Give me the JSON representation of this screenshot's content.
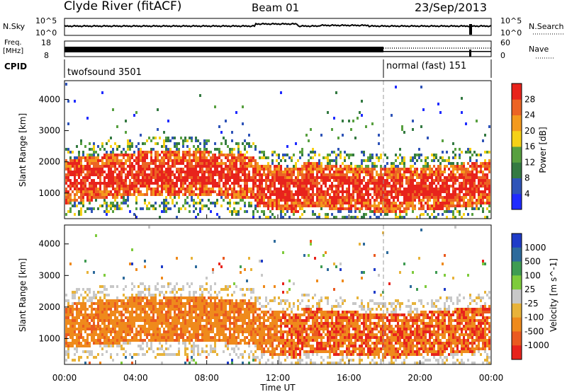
{
  "header": {
    "station": "Clyde River (fitACF)",
    "beam": "Beam 01",
    "date": "23/Sep/2013"
  },
  "sky_panel": {
    "left_label": "N.Sky",
    "left_ticks": [
      "10^5",
      "10^0"
    ],
    "right_label": "N.Search",
    "right_ticks": [
      "10^5",
      "10^0"
    ]
  },
  "freq_panel": {
    "left_label": [
      "Freq.",
      "[MHz]"
    ],
    "left_ticks": [
      "18",
      "8"
    ],
    "right_label": "Nave",
    "right_ticks": [
      "60",
      "0"
    ]
  },
  "cpid_panel": {
    "label": "CPID",
    "modes": [
      {
        "name": "twofsound 3501"
      },
      {
        "name": "normal (fast) 151"
      }
    ]
  },
  "x_axis": {
    "label": "Time UT",
    "ticks": [
      "00:00",
      "04:00",
      "08:00",
      "12:00",
      "16:00",
      "20:00",
      "00:00"
    ]
  },
  "chart_data": [
    {
      "type": "heatmap",
      "title": "",
      "xlabel": "Time UT",
      "ylabel": "Slant Range [km]",
      "ylim": [
        180,
        4600
      ],
      "y_ticks": [
        1000,
        2000,
        3000,
        4000
      ],
      "colorbar": {
        "label": "Power [dB]",
        "ticks": [
          "4",
          "8",
          "12",
          "16",
          "20",
          "24",
          "28"
        ],
        "colors": [
          "#1f2bff",
          "#2f54b8",
          "#347a42",
          "#58a040",
          "#f6d116",
          "#f49a1d",
          "#ec6424",
          "#e8231c"
        ]
      }
    },
    {
      "type": "heatmap",
      "title": "",
      "xlabel": "Time UT",
      "ylabel": "Slant Range [km]",
      "ylim": [
        180,
        4600
      ],
      "y_ticks": [
        1000,
        2000,
        3000,
        4000
      ],
      "colorbar": {
        "label": "Velocity [m s^-1]",
        "ticks": [
          "1000",
          "500",
          "100",
          "25",
          "-25",
          "-100",
          "-500",
          "-1000"
        ],
        "colors": [
          "#1f3cc8",
          "#2e6b9c",
          "#3f9c52",
          "#7ecb3c",
          "#c8c8c8",
          "#e8b33a",
          "#ef8a1c",
          "#ea5a20",
          "#e8231c"
        ]
      }
    }
  ]
}
